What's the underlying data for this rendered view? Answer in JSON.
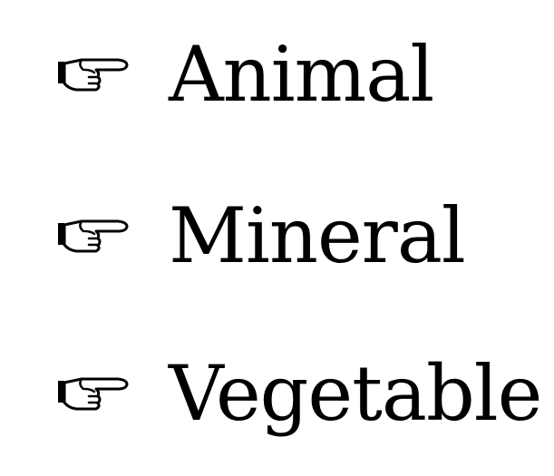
{
  "list": {
    "bullet_icon": "pointing-hand-icon",
    "items": [
      {
        "label": "Animal"
      },
      {
        "label": "Mineral"
      },
      {
        "label": "Vegetable"
      }
    ]
  }
}
